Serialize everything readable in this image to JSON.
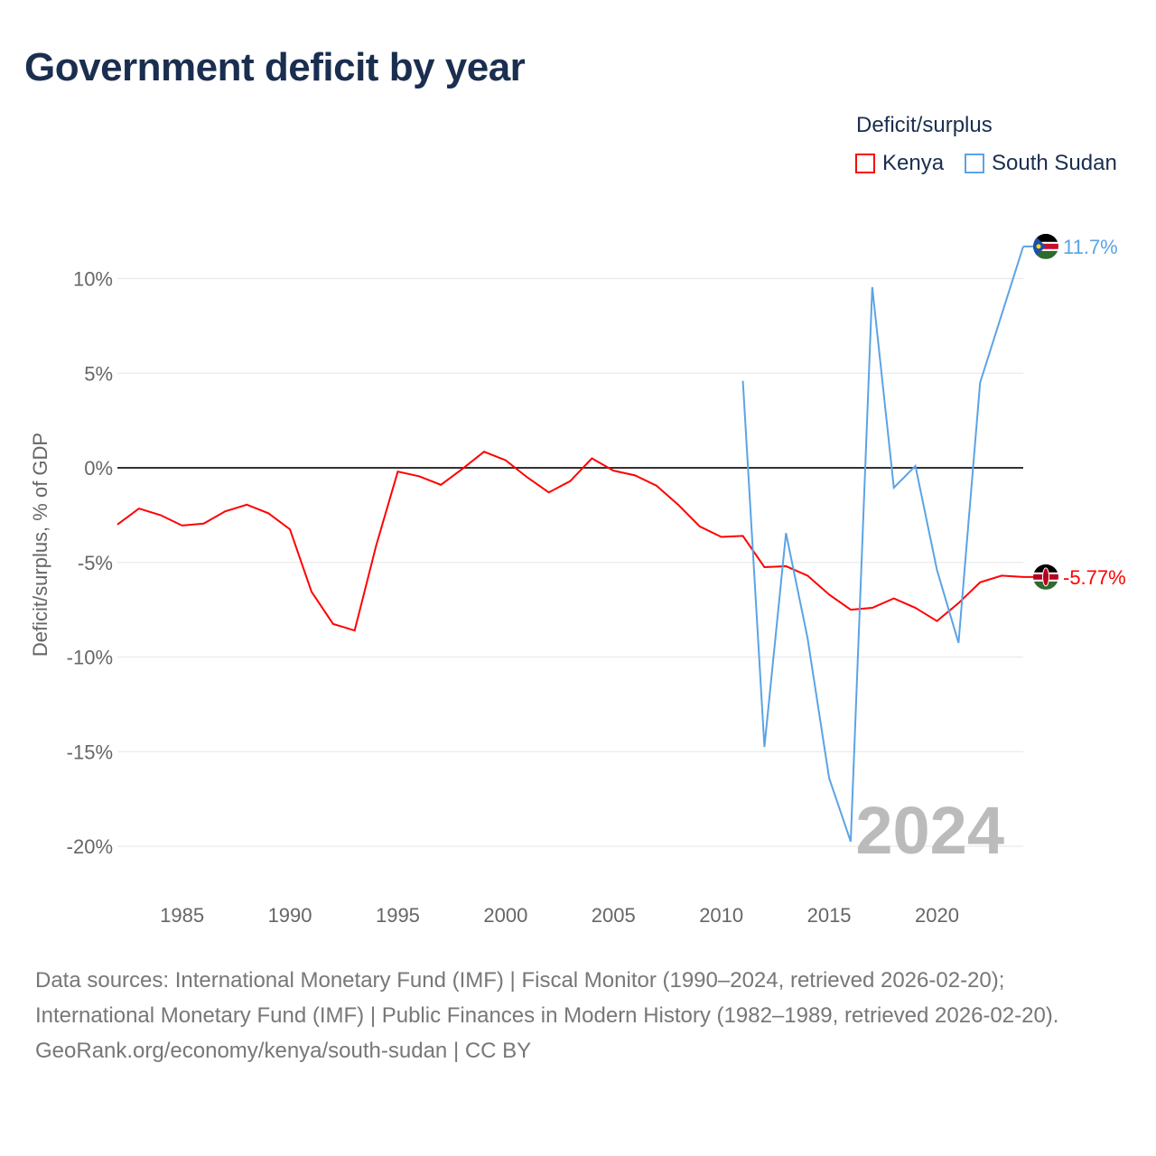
{
  "title": "Government deficit by year",
  "legend": {
    "title": "Deficit/surplus",
    "items": [
      {
        "name": "Kenya",
        "color": "#ff0000"
      },
      {
        "name": "South Sudan",
        "color": "#5ba3e6"
      }
    ]
  },
  "footer": {
    "sources": "Data sources: International Monetary Fund (IMF) | Fiscal Monitor (1990–2024, retrieved 2026-02-20); International Monetary Fund (IMF) | Public Finances in Modern History (1982–1989, retrieved 2026-02-20).",
    "credit": "GeoRank.org/economy/kenya/south-sudan | CC BY"
  },
  "chart_data": {
    "type": "line",
    "title": "Government deficit by year",
    "xlabel": "",
    "ylabel": "Deficit/surplus, % of GDP",
    "xlim": [
      1982,
      2024
    ],
    "ylim": [
      -22,
      12
    ],
    "xticks": [
      1985,
      1990,
      1995,
      2000,
      2005,
      2010,
      2015,
      2020
    ],
    "yticks": [
      10,
      5,
      0,
      -5,
      -10,
      -15,
      -20
    ],
    "ytick_labels": [
      "10%",
      "5%",
      "0%",
      "-5%",
      "-10%",
      "-15%",
      "-20%"
    ],
    "grid": true,
    "legend_position": "top-right",
    "annotation": "2024",
    "series": [
      {
        "name": "Kenya",
        "color": "#ff0000",
        "end_label": "-5.77%",
        "x": [
          1982,
          1983,
          1984,
          1985,
          1986,
          1987,
          1988,
          1989,
          1990,
          1991,
          1992,
          1993,
          1994,
          1995,
          1996,
          1997,
          1998,
          1999,
          2000,
          2001,
          2002,
          2003,
          2004,
          2005,
          2006,
          2007,
          2008,
          2009,
          2010,
          2011,
          2012,
          2013,
          2014,
          2015,
          2016,
          2017,
          2018,
          2019,
          2020,
          2021,
          2022,
          2023,
          2024
        ],
        "values": [
          -3.0,
          -2.15,
          -2.5,
          -3.05,
          -2.95,
          -2.3,
          -1.95,
          -2.4,
          -3.25,
          -6.55,
          -8.25,
          -8.6,
          -4.1,
          -0.2,
          -0.45,
          -0.9,
          -0.05,
          0.85,
          0.4,
          -0.5,
          -1.3,
          -0.7,
          0.5,
          -0.15,
          -0.4,
          -0.95,
          -1.95,
          -3.1,
          -3.65,
          -3.6,
          -5.25,
          -5.2,
          -5.7,
          -6.7,
          -7.5,
          -7.4,
          -6.9,
          -7.4,
          -8.1,
          -7.15,
          -6.05,
          -5.7,
          -5.77
        ]
      },
      {
        "name": "South Sudan",
        "color": "#5ba3e6",
        "end_label": "11.7%",
        "x": [
          2011,
          2012,
          2013,
          2014,
          2015,
          2016,
          2017,
          2018,
          2019,
          2020,
          2021,
          2022,
          2023,
          2024
        ],
        "values": [
          4.6,
          -14.75,
          -3.45,
          -9.0,
          -16.4,
          -19.75,
          9.55,
          -1.05,
          0.1,
          -5.4,
          -9.25,
          4.5,
          8.1,
          11.7
        ]
      }
    ]
  }
}
